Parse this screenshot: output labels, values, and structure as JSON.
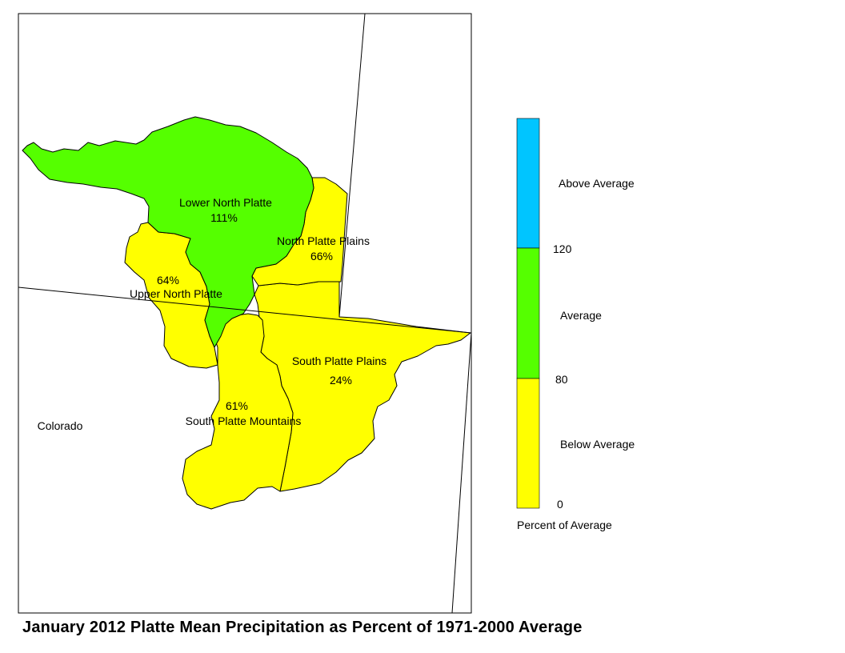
{
  "map": {
    "title": "January 2012 Platte Mean Precipitation as Percent of 1971-2000 Average",
    "state_label": "Colorado",
    "regions": [
      {
        "name": "Lower North Platte",
        "value": "111%",
        "category": "Average"
      },
      {
        "name": "North Platte Plains",
        "value": "66%",
        "category": "Below Average"
      },
      {
        "name": "Upper North Platte",
        "value": "64%",
        "category": "Below Average"
      },
      {
        "name": "South Platte Plains",
        "value": "24%",
        "category": "Below Average"
      },
      {
        "name": "South Platte Mountains",
        "value": "61%",
        "category": "Below Average"
      }
    ]
  },
  "legend": {
    "title": "Percent of Average",
    "classes": [
      {
        "label": "Above Average",
        "color": "#00c5ff"
      },
      {
        "label": "Average",
        "color": "#55ff00"
      },
      {
        "label": "Below Average",
        "color": "#ffff00"
      }
    ],
    "breaks": [
      "120",
      "80",
      "0"
    ]
  },
  "colors": {
    "above": "#00c5ff",
    "average": "#55ff00",
    "below": "#ffff00",
    "border": "#000000"
  }
}
